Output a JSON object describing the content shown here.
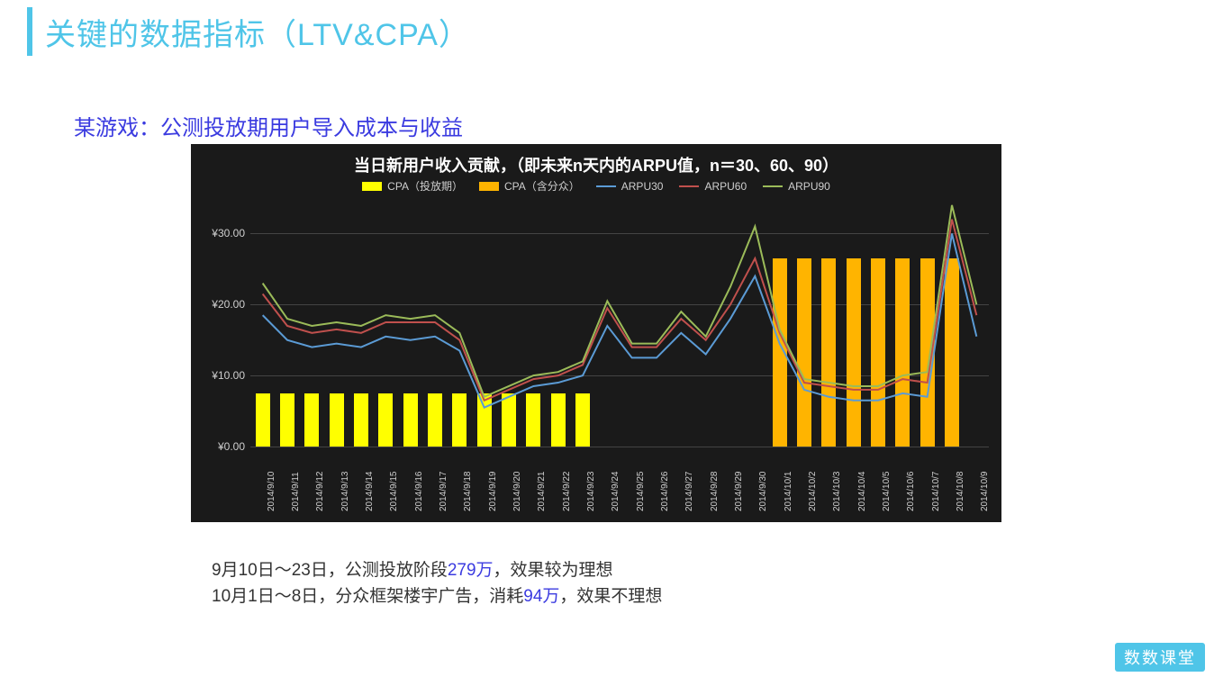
{
  "page_title": "关键的数据指标（LTV&CPA）",
  "subtitle": "某游戏：公测投放期用户导入成本与收益",
  "accent_color": "#4fc5e8",
  "subtitle_color": "#3b3be0",
  "chart": {
    "background_color": "#1a1a1a",
    "grid_color": "#444444",
    "text_color": "#cfcfcf",
    "title": "当日新用户收入贡献，（即未来n天内的ARPU值，n＝30、60、90）",
    "title_color": "#ffffff",
    "title_fontsize": 18,
    "ylim": [
      0,
      35
    ],
    "yticks": [
      0,
      10,
      20,
      30
    ],
    "ytick_labels": [
      "¥0.00",
      "¥10.00",
      "¥20.00",
      "¥30.00"
    ],
    "tick_fontsize": 12,
    "x_labels": [
      "2014/9/10",
      "2014/9/11",
      "2014/9/12",
      "2014/9/13",
      "2014/9/14",
      "2014/9/15",
      "2014/9/16",
      "2014/9/17",
      "2014/9/18",
      "2014/9/19",
      "2014/9/20",
      "2014/9/21",
      "2014/9/22",
      "2014/9/23",
      "2014/9/24",
      "2014/9/25",
      "2014/9/26",
      "2014/9/27",
      "2014/9/28",
      "2014/9/29",
      "2014/9/30",
      "2014/10/1",
      "2014/10/2",
      "2014/10/3",
      "2014/10/4",
      "2014/10/5",
      "2014/10/6",
      "2014/10/7",
      "2014/10/8",
      "2014/10/9"
    ],
    "x_label_fontsize": 10,
    "bar_width": 0.58,
    "legend": [
      {
        "label": "CPA（投放期）",
        "type": "bar",
        "color": "#ffff00"
      },
      {
        "label": "CPA（含分众）",
        "type": "bar",
        "color": "#ffb400"
      },
      {
        "label": "ARPU30",
        "type": "line",
        "color": "#5b9bd5"
      },
      {
        "label": "ARPU60",
        "type": "line",
        "color": "#c0504d"
      },
      {
        "label": "ARPU90",
        "type": "line",
        "color": "#9bbb59"
      }
    ],
    "series": {
      "cpa_launch": {
        "color": "#ffff00",
        "values": [
          7.5,
          7.5,
          7.5,
          7.5,
          7.5,
          7.5,
          7.5,
          7.5,
          7.5,
          7.5,
          7.5,
          7.5,
          7.5,
          7.5,
          null,
          null,
          null,
          null,
          null,
          null,
          null,
          null,
          null,
          null,
          null,
          null,
          null,
          null,
          null,
          null
        ]
      },
      "cpa_fenzhong": {
        "color": "#ffb400",
        "values": [
          null,
          null,
          null,
          null,
          null,
          null,
          null,
          null,
          null,
          null,
          null,
          null,
          null,
          null,
          null,
          null,
          null,
          null,
          null,
          null,
          null,
          26.5,
          26.5,
          26.5,
          26.5,
          26.5,
          26.5,
          26.5,
          26.5,
          null
        ]
      },
      "arpu30": {
        "color": "#5b9bd5",
        "line_width": 2,
        "values": [
          18.5,
          15,
          14,
          14.5,
          14,
          15.5,
          15,
          15.5,
          13.5,
          5.5,
          7,
          8.5,
          9,
          10,
          17,
          12.5,
          12.5,
          16,
          13,
          18,
          24,
          14.5,
          8,
          7,
          6.5,
          6.5,
          7.5,
          7,
          30,
          15.5
        ]
      },
      "arpu60": {
        "color": "#c0504d",
        "line_width": 2,
        "values": [
          21.5,
          17,
          16,
          16.5,
          16,
          17.5,
          17.5,
          17.5,
          15,
          6.5,
          8,
          9.5,
          10,
          11.5,
          19.5,
          14,
          14,
          18,
          15,
          20,
          26.5,
          16,
          9,
          8.5,
          8,
          8,
          9.5,
          9,
          32,
          18.5
        ]
      },
      "arpu90": {
        "color": "#9bbb59",
        "line_width": 2,
        "values": [
          23,
          18,
          17,
          17.5,
          17,
          18.5,
          18,
          18.5,
          16,
          7,
          8.5,
          10,
          10.5,
          12,
          20.5,
          14.5,
          14.5,
          19,
          15.5,
          22.5,
          31,
          16.5,
          9.5,
          9,
          8.5,
          8.5,
          10,
          10.5,
          34,
          20
        ]
      }
    }
  },
  "notes": {
    "line1_a": "9月10日～23日，公测投放阶段",
    "line1_hl": "279万",
    "line1_b": "，效果较为理想",
    "line2_a": "10月1日～8日，分众框架楼宇广告，消耗",
    "line2_hl": "94万",
    "line2_b": "，效果不理想",
    "highlight_color": "#3b3be0",
    "text_color": "#333333",
    "fontsize": 19
  },
  "logo_text": "数数课堂",
  "logo_bg": "#4fc5e8",
  "logo_color": "#ffffff"
}
